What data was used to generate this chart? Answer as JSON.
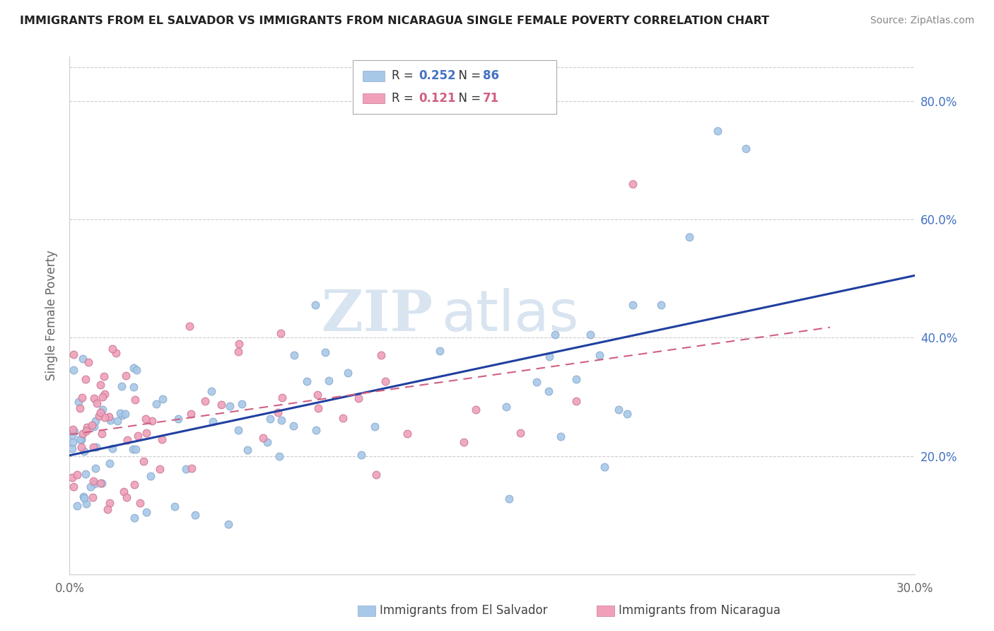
{
  "title": "IMMIGRANTS FROM EL SALVADOR VS IMMIGRANTS FROM NICARAGUA SINGLE FEMALE POVERTY CORRELATION CHART",
  "source": "Source: ZipAtlas.com",
  "ylabel": "Single Female Poverty",
  "yticks": [
    "20.0%",
    "40.0%",
    "60.0%",
    "80.0%"
  ],
  "ytick_vals": [
    0.2,
    0.4,
    0.6,
    0.8
  ],
  "xmin": 0.0,
  "xmax": 0.3,
  "ymin": 0.0,
  "ymax": 0.875,
  "legend_label1": "Immigrants from El Salvador",
  "legend_label2": "Immigrants from Nicaragua",
  "R1": "0.252",
  "N1": "86",
  "R2": "0.121",
  "N2": "71",
  "color_blue": "#A8C8E8",
  "color_pink": "#F0A0B8",
  "line_blue": "#2040A0",
  "line_pink_color": "#D06080",
  "watermark_color": "#D8E4F0",
  "background_color": "#FFFFFF",
  "grid_color": "#CCCCCC"
}
